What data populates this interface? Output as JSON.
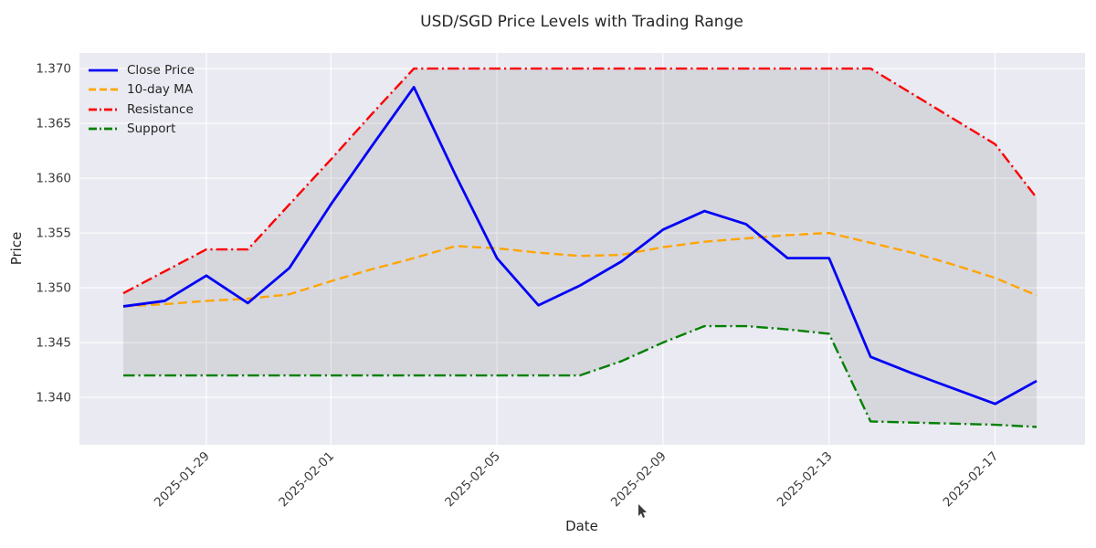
{
  "title": "USD/SGD Price Levels with Trading Range",
  "x_axis_label": "Date",
  "y_axis_label": "Price",
  "legend": {
    "position": "upper left",
    "items": [
      {
        "label": "Close Price",
        "color": "#0202f5",
        "style": "solid"
      },
      {
        "label": "10-day MA",
        "color": "#ffa500",
        "style": "dashed"
      },
      {
        "label": "Resistance",
        "color": "#fa0000",
        "style": "dashdot"
      },
      {
        "label": "Support",
        "color": "#008000",
        "style": "dashdot"
      }
    ]
  },
  "chart_data": {
    "type": "line",
    "x": [
      "2025-01-27",
      "2025-01-28",
      "2025-01-29",
      "2025-01-30",
      "2025-01-31",
      "2025-02-01",
      "2025-02-02",
      "2025-02-03",
      "2025-02-04",
      "2025-02-05",
      "2025-02-06",
      "2025-02-07",
      "2025-02-08",
      "2025-02-09",
      "2025-02-10",
      "2025-02-11",
      "2025-02-12",
      "2025-02-13",
      "2025-02-14",
      "2025-02-15",
      "2025-02-16",
      "2025-02-17",
      "2025-02-18"
    ],
    "series": [
      {
        "name": "Close Price",
        "color": "#0202f5",
        "style": "solid",
        "width": 2.8,
        "values": [
          1.3483,
          1.3488,
          1.3511,
          1.3486,
          1.3518,
          1.3576,
          1.363,
          1.3683,
          1.3603,
          1.3527,
          1.3484,
          1.3502,
          1.3524,
          1.3553,
          1.357,
          1.3558,
          1.3527,
          1.3527,
          1.3437,
          1.3422,
          1.3408,
          1.3394,
          1.3415
        ]
      },
      {
        "name": "10-day MA",
        "color": "#ffa500",
        "style": "dashed",
        "width": 2.4,
        "values": [
          1.3483,
          1.3485,
          1.3488,
          1.349,
          1.3494,
          1.3506,
          1.3517,
          1.3527,
          1.3538,
          1.3536,
          1.3532,
          1.3529,
          1.353,
          1.3537,
          1.3542,
          1.3545,
          1.3548,
          1.355,
          1.3541,
          1.3532,
          1.3521,
          1.3509,
          1.3493
        ]
      },
      {
        "name": "Resistance",
        "color": "#fa0000",
        "style": "dashdot",
        "width": 2.4,
        "values": [
          1.3495,
          1.3515,
          1.3535,
          1.3535,
          1.3576,
          1.3617,
          1.3659,
          1.37,
          1.37,
          1.37,
          1.37,
          1.37,
          1.37,
          1.37,
          1.37,
          1.37,
          1.37,
          1.37,
          1.37,
          1.3677,
          1.3654,
          1.3631,
          1.3582
        ]
      },
      {
        "name": "Support",
        "color": "#008000",
        "style": "dashdot",
        "width": 2.4,
        "values": [
          1.342,
          1.342,
          1.342,
          1.342,
          1.342,
          1.342,
          1.342,
          1.342,
          1.342,
          1.342,
          1.342,
          1.342,
          1.3433,
          1.345,
          1.3465,
          1.3465,
          1.3462,
          1.3458,
          1.3378,
          1.3377,
          1.3376,
          1.3375,
          1.3373
        ]
      }
    ],
    "band": {
      "between": [
        "Support",
        "Resistance"
      ],
      "fill": "#808080",
      "opacity": 0.18
    },
    "x_tick_indices": [
      2,
      5,
      9,
      13,
      17,
      21
    ],
    "x_tick_labels": [
      "2025-01-29",
      "2025-02-01",
      "2025-02-05",
      "2025-02-09",
      "2025-02-13",
      "2025-02-17"
    ],
    "x_tick_rotation": 45,
    "y_ticks": [
      1.34,
      1.345,
      1.35,
      1.355,
      1.36,
      1.365,
      1.37
    ],
    "ylim": [
      1.33567,
      1.37142
    ],
    "grid": true,
    "grid_color": "#ffffff",
    "plot_background": "#eaeaf2",
    "figure_background": "#ffffff"
  }
}
